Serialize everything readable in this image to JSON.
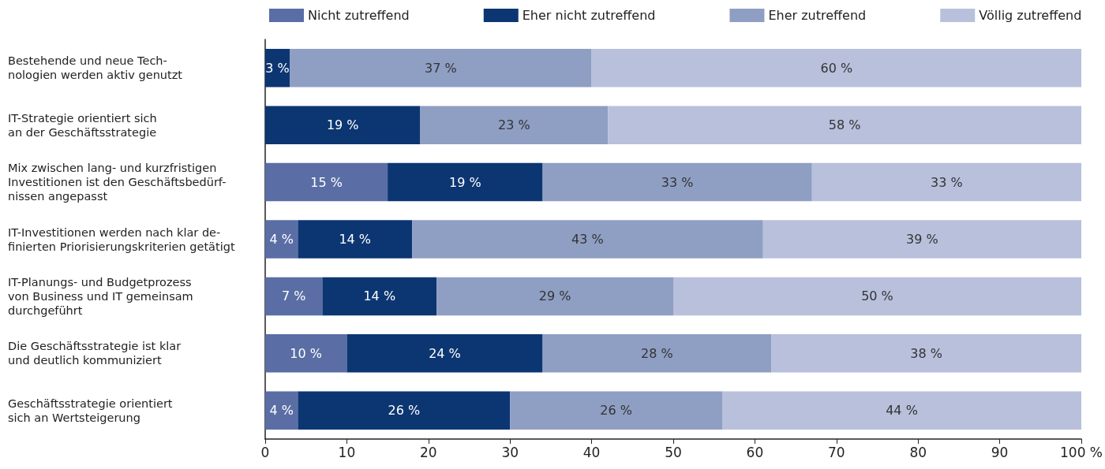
{
  "chart_data": {
    "type": "bar",
    "orientation": "horizontal",
    "stacked": true,
    "legend": "top",
    "grid": false,
    "categories": [
      "Bestehende und neue Tech-\nnologien werden aktiv genutzt",
      "IT-Strategie orientiert sich\nan der Geschäftsstrategie",
      "Mix zwischen lang- und kurzfristigen\nInvestitionen ist den Geschäftsbedürf-\nnissen angepasst",
      "IT-Investitionen werden nach klar de-\nfinierten Priorisierungskriterien getätigt",
      "IT-Planungs- und Budgetprozess\nvon Business und IT gemeinsam\ndurchgeführt",
      "Die Geschäftsstrategie ist klar\nund deutlich kommuniziert",
      "Geschäftsstrategie orientiert\nsich an Wertsteigerung"
    ],
    "series": [
      {
        "name": "Nicht zutreffend",
        "color": "#5a6ea5",
        "values": [
          0,
          0,
          15,
          4,
          7,
          10,
          4
        ],
        "value_labels": [
          null,
          null,
          "15 %",
          "4 %",
          "7 %",
          "10 %",
          "4 %"
        ]
      },
      {
        "name": "Eher nicht zutreffend",
        "color": "#0c3672",
        "values": [
          3,
          19,
          19,
          14,
          14,
          24,
          26
        ],
        "value_labels": [
          "3 %",
          "19 %",
          "19 %",
          "14 %",
          "14 %",
          "24 %",
          "26 %"
        ]
      },
      {
        "name": "Eher zutreffend",
        "color": "#8f9ec3",
        "values": [
          37,
          23,
          33,
          43,
          29,
          28,
          26
        ],
        "value_labels": [
          "37 %",
          "23 %",
          "33 %",
          "43 %",
          "29 %",
          "28 %",
          "26 %"
        ]
      },
      {
        "name": "Völlig zutreffend",
        "color": "#b8c0dc",
        "values": [
          60,
          58,
          33,
          39,
          50,
          38,
          44
        ],
        "value_labels": [
          "60 %",
          "58 %",
          "33 %",
          "39 %",
          "50 %",
          "38 %",
          "44 %"
        ]
      }
    ],
    "xlim": [
      0,
      100
    ],
    "xticks": [
      0,
      10,
      20,
      30,
      40,
      50,
      60,
      70,
      80,
      90,
      {
        "value": 100,
        "label": "100 %"
      }
    ]
  }
}
